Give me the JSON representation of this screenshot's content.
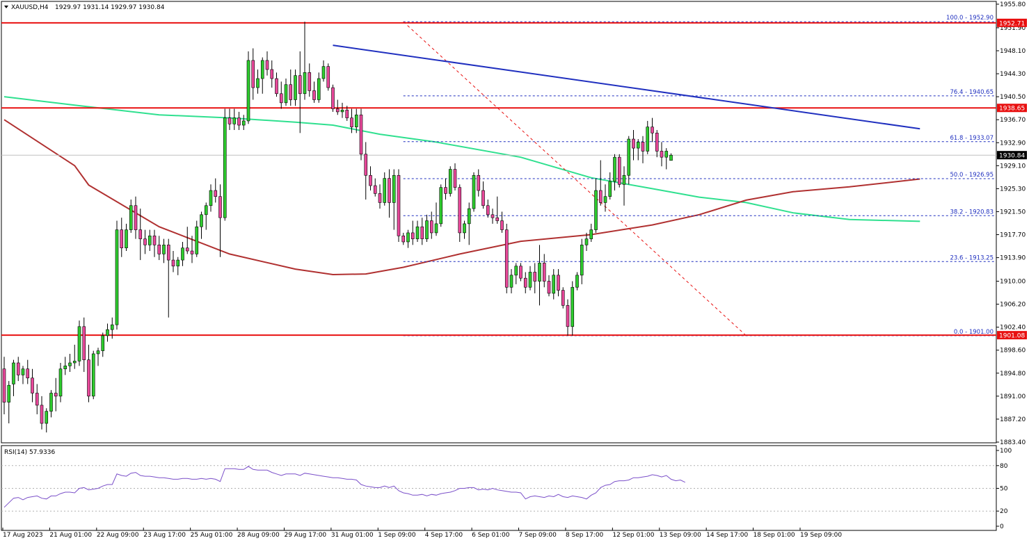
{
  "header": {
    "symbol": "XAUUSD,H4",
    "ohlc": "1929.97 1931.14 1929.97 1930.84"
  },
  "indicator": {
    "label": "RSI(14) 57.9336",
    "levels": [
      "100",
      "80",
      "50",
      "20",
      "0"
    ]
  },
  "colors": {
    "bull": "#2ecc2e",
    "bear": "#e8489a",
    "ma_red": "#b03030",
    "ma_green": "#2fe08f",
    "trendline": "#1f2fbf",
    "hline": "#e81010",
    "fib": "#1f2fbf",
    "rsi": "#7a4fc9",
    "current_price_bg": "#000000"
  },
  "chart_data": [
    {
      "type": "candlestick",
      "name": "price",
      "ylim": [
        1883.4,
        1955.8
      ],
      "y_ticks": [
        "1955.80",
        "1951.90",
        "1948.10",
        "1944.30",
        "1940.50",
        "1936.70",
        "1932.90",
        "1929.10",
        "1925.30",
        "1921.50",
        "1917.70",
        "1913.90",
        "1910.00",
        "1906.20",
        "1902.40",
        "1898.60",
        "1894.80",
        "1891.00",
        "1887.20",
        "1883.40"
      ],
      "x_ticks": [
        "17 Aug 2023",
        "21 Aug 01:00",
        "22 Aug 09:00",
        "23 Aug 17:00",
        "25 Aug 01:00",
        "28 Aug 09:00",
        "29 Aug 17:00",
        "31 Aug 01:00",
        "1 Sep 09:00",
        "4 Sep 17:00",
        "6 Sep 01:00",
        "7 Sep 09:00",
        "8 Sep 17:00",
        "12 Sep 01:00",
        "13 Sep 09:00",
        "14 Sep 17:00",
        "18 Sep 01:00",
        "19 Sep 09:00"
      ],
      "price_tags": [
        {
          "label": "1952.71",
          "value": 1952.71,
          "color": "#e81010"
        },
        {
          "label": "1938.65",
          "value": 1938.65,
          "color": "#e81010"
        },
        {
          "label": "1930.84",
          "value": 1930.84,
          "color": "#000000"
        },
        {
          "label": "1901.08",
          "value": 1901.08,
          "color": "#e81010"
        }
      ],
      "horizontal_lines": [
        1952.71,
        1938.65,
        1901.08
      ],
      "fibonacci": [
        {
          "label": "100.0 - 1952.90",
          "value": 1952.9
        },
        {
          "label": "76.4 - 1940.65",
          "value": 1940.65
        },
        {
          "label": "61.8 - 1933.07",
          "value": 1933.07
        },
        {
          "label": "50.0 - 1926.95",
          "value": 1926.95
        },
        {
          "label": "38.2 - 1920.83",
          "value": 1920.83
        },
        {
          "label": "23.6 - 1913.25",
          "value": 1913.25
        },
        {
          "label": "0.0 - 1901.00",
          "value": 1901.0
        }
      ],
      "fib_anchor_high": {
        "bar": 85,
        "value": 1952.9
      },
      "fib_anchor_low": {
        "bar": 158,
        "value": 1901.0
      },
      "trendline": [
        {
          "bar": 70,
          "value": 1949.0
        },
        {
          "bar": 195,
          "value": 1935.2
        }
      ],
      "ma_red": [
        [
          0,
          1936.7
        ],
        [
          15,
          1929.1
        ],
        [
          18,
          1925.9
        ],
        [
          33,
          1919.0
        ],
        [
          48,
          1914.5
        ],
        [
          62,
          1912.0
        ],
        [
          70,
          1911.1
        ],
        [
          77,
          1911.2
        ],
        [
          85,
          1912.3
        ],
        [
          97,
          1914.5
        ],
        [
          110,
          1916.6
        ],
        [
          125,
          1917.7
        ],
        [
          138,
          1919.3
        ],
        [
          148,
          1921.0
        ],
        [
          158,
          1923.4
        ],
        [
          168,
          1924.8
        ],
        [
          180,
          1925.6
        ],
        [
          195,
          1926.9
        ]
      ],
      "ma_green": [
        [
          0,
          1940.5
        ],
        [
          15,
          1939.1
        ],
        [
          33,
          1937.5
        ],
        [
          48,
          1937.0
        ],
        [
          62,
          1936.3
        ],
        [
          70,
          1935.8
        ],
        [
          80,
          1934.3
        ],
        [
          92,
          1933.0
        ],
        [
          110,
          1930.5
        ],
        [
          125,
          1927.1
        ],
        [
          138,
          1925.3
        ],
        [
          148,
          1923.9
        ],
        [
          158,
          1923.0
        ],
        [
          168,
          1921.3
        ],
        [
          180,
          1920.2
        ],
        [
          195,
          1919.9
        ]
      ],
      "candles": [
        [
          1895.5,
          1897.5,
          1888.0,
          1890.0
        ],
        [
          1890.0,
          1893.5,
          1886.5,
          1892.8
        ],
        [
          1893.0,
          1897.0,
          1891.0,
          1896.5
        ],
        [
          1896.5,
          1897.5,
          1893.5,
          1894.5
        ],
        [
          1894.5,
          1896.0,
          1893.0,
          1895.5
        ],
        [
          1895.5,
          1897.0,
          1893.0,
          1894.0
        ],
        [
          1894.0,
          1895.5,
          1890.0,
          1891.5
        ],
        [
          1891.5,
          1893.0,
          1888.0,
          1889.5
        ],
        [
          1889.5,
          1891.0,
          1885.5,
          1886.5
        ],
        [
          1886.5,
          1889.0,
          1885.0,
          1888.5
        ],
        [
          1888.5,
          1892.0,
          1887.5,
          1891.5
        ],
        [
          1891.5,
          1894.0,
          1888.5,
          1891.0
        ],
        [
          1891.0,
          1896.5,
          1890.0,
          1895.5
        ],
        [
          1895.5,
          1897.5,
          1894.5,
          1896.0
        ],
        [
          1896.0,
          1898.0,
          1895.0,
          1896.5
        ],
        [
          1896.5,
          1899.5,
          1895.5,
          1896.8
        ],
        [
          1896.8,
          1903.5,
          1896.0,
          1902.5
        ],
        [
          1902.5,
          1904.0,
          1895.0,
          1897.0
        ],
        [
          1897.0,
          1899.5,
          1890.0,
          1891.0
        ],
        [
          1891.0,
          1898.5,
          1890.5,
          1898.0
        ],
        [
          1898.0,
          1899.0,
          1896.0,
          1898.5
        ],
        [
          1898.5,
          1901.5,
          1897.5,
          1901.0
        ],
        [
          1901.0,
          1903.0,
          1900.0,
          1902.0
        ],
        [
          1902.0,
          1904.0,
          1900.5,
          1902.8
        ],
        [
          1902.8,
          1920.0,
          1902.0,
          1918.5
        ],
        [
          1918.5,
          1920.5,
          1914.0,
          1915.5
        ],
        [
          1915.5,
          1919.5,
          1915.0,
          1918.5
        ],
        [
          1918.5,
          1923.5,
          1918.0,
          1922.5
        ],
        [
          1922.5,
          1924.0,
          1917.0,
          1918.5
        ],
        [
          1918.5,
          1922.0,
          1913.5,
          1917.0
        ],
        [
          1917.0,
          1918.5,
          1914.5,
          1916.0
        ],
        [
          1916.0,
          1918.5,
          1915.0,
          1917.5
        ],
        [
          1917.5,
          1918.5,
          1914.0,
          1916.0
        ],
        [
          1916.0,
          1917.5,
          1913.5,
          1914.5
        ],
        [
          1914.5,
          1917.0,
          1913.0,
          1916.0
        ],
        [
          1916.0,
          1917.0,
          1904.0,
          1913.5
        ],
        [
          1913.5,
          1915.0,
          1911.5,
          1912.5
        ],
        [
          1912.5,
          1914.0,
          1911.0,
          1913.5
        ],
        [
          1913.5,
          1916.5,
          1912.5,
          1915.5
        ],
        [
          1915.5,
          1919.0,
          1914.5,
          1915.0
        ],
        [
          1915.0,
          1917.5,
          1913.0,
          1914.5
        ],
        [
          1914.5,
          1920.0,
          1914.0,
          1919.0
        ],
        [
          1919.0,
          1921.5,
          1917.0,
          1921.0
        ],
        [
          1921.0,
          1923.0,
          1918.5,
          1922.5
        ],
        [
          1922.5,
          1926.0,
          1921.5,
          1925.0
        ],
        [
          1925.0,
          1927.0,
          1923.0,
          1924.0
        ],
        [
          1924.0,
          1926.0,
          1914.0,
          1920.5
        ],
        [
          1920.5,
          1938.5,
          1920.0,
          1937.0
        ],
        [
          1937.0,
          1938.5,
          1935.0,
          1936.0
        ],
        [
          1936.0,
          1938.5,
          1935.0,
          1937.0
        ],
        [
          1937.0,
          1938.0,
          1935.0,
          1935.8
        ],
        [
          1935.8,
          1937.5,
          1935.0,
          1936.5
        ],
        [
          1936.5,
          1948.0,
          1936.0,
          1946.5
        ],
        [
          1946.5,
          1948.5,
          1940.0,
          1942.0
        ],
        [
          1942.0,
          1945.0,
          1941.0,
          1943.5
        ],
        [
          1943.5,
          1947.0,
          1941.0,
          1946.5
        ],
        [
          1946.5,
          1948.0,
          1944.0,
          1945.0
        ],
        [
          1945.0,
          1946.5,
          1942.0,
          1943.5
        ],
        [
          1943.5,
          1944.5,
          1940.5,
          1941.0
        ],
        [
          1941.0,
          1943.0,
          1938.5,
          1939.5
        ],
        [
          1939.5,
          1943.5,
          1939.0,
          1942.5
        ],
        [
          1942.5,
          1945.0,
          1939.0,
          1940.0
        ],
        [
          1940.0,
          1945.0,
          1939.0,
          1944.0
        ],
        [
          1944.0,
          1948.0,
          1934.5,
          1941.0
        ],
        [
          1941.0,
          1952.9,
          1940.0,
          1944.5
        ],
        [
          1944.5,
          1946.0,
          1940.5,
          1941.5
        ],
        [
          1941.5,
          1943.0,
          1939.5,
          1940.0
        ],
        [
          1940.0,
          1944.5,
          1939.5,
          1943.5
        ],
        [
          1943.5,
          1946.5,
          1943.0,
          1945.5
        ],
        [
          1945.5,
          1946.0,
          1941.5,
          1942.0
        ],
        [
          1942.0,
          1942.5,
          1938.0,
          1938.5
        ],
        [
          1938.5,
          1940.0,
          1937.5,
          1938.0
        ],
        [
          1938.0,
          1939.5,
          1937.0,
          1938.3
        ],
        [
          1938.3,
          1939.0,
          1936.5,
          1937.0
        ],
        [
          1937.0,
          1938.5,
          1934.5,
          1935.5
        ],
        [
          1935.5,
          1938.5,
          1934.5,
          1937.5
        ],
        [
          1937.5,
          1938.5,
          1930.0,
          1931.0
        ],
        [
          1931.0,
          1933.0,
          1923.5,
          1927.5
        ],
        [
          1927.5,
          1929.0,
          1925.0,
          1925.8
        ],
        [
          1925.8,
          1927.0,
          1924.0,
          1924.5
        ],
        [
          1924.5,
          1926.0,
          1922.0,
          1923.0
        ],
        [
          1923.0,
          1928.0,
          1922.5,
          1927.0
        ],
        [
          1927.0,
          1928.5,
          1920.5,
          1923.0
        ],
        [
          1923.0,
          1928.5,
          1918.5,
          1927.5
        ],
        [
          1927.5,
          1928.5,
          1916.5,
          1917.5
        ],
        [
          1917.5,
          1918.0,
          1916.0,
          1916.5
        ],
        [
          1916.5,
          1918.5,
          1915.5,
          1918.0
        ],
        [
          1918.0,
          1920.0,
          1916.0,
          1917.0
        ],
        [
          1917.0,
          1920.0,
          1916.5,
          1919.0
        ],
        [
          1919.0,
          1920.5,
          1916.0,
          1917.0
        ],
        [
          1917.0,
          1921.0,
          1916.5,
          1920.0
        ],
        [
          1920.0,
          1921.5,
          1917.0,
          1918.0
        ],
        [
          1918.0,
          1923.0,
          1917.5,
          1919.5
        ],
        [
          1919.5,
          1926.0,
          1919.0,
          1925.5
        ],
        [
          1925.5,
          1927.0,
          1923.5,
          1924.5
        ],
        [
          1924.5,
          1929.0,
          1924.0,
          1928.5
        ],
        [
          1928.5,
          1929.5,
          1925.0,
          1925.5
        ],
        [
          1925.5,
          1926.0,
          1916.5,
          1918.0
        ],
        [
          1918.0,
          1920.0,
          1917.0,
          1919.5
        ],
        [
          1919.5,
          1923.0,
          1916.0,
          1922.0
        ],
        [
          1922.0,
          1928.0,
          1921.5,
          1927.5
        ],
        [
          1927.5,
          1928.5,
          1924.0,
          1925.0
        ],
        [
          1925.0,
          1926.5,
          1922.0,
          1922.5
        ],
        [
          1922.5,
          1923.5,
          1920.5,
          1921.0
        ],
        [
          1921.0,
          1922.0,
          1919.5,
          1920.5
        ],
        [
          1920.5,
          1924.0,
          1919.5,
          1920.0
        ],
        [
          1920.0,
          1921.5,
          1918.0,
          1918.5
        ],
        [
          1918.5,
          1919.5,
          1908.0,
          1909.0
        ],
        [
          1909.0,
          1912.0,
          1908.0,
          1911.0
        ],
        [
          1911.0,
          1913.0,
          1909.5,
          1912.5
        ],
        [
          1912.5,
          1913.0,
          1910.0,
          1910.5
        ],
        [
          1910.5,
          1911.5,
          1908.0,
          1909.0
        ],
        [
          1909.0,
          1912.5,
          1908.5,
          1911.5
        ],
        [
          1911.5,
          1913.0,
          1908.0,
          1910.0
        ],
        [
          1910.0,
          1916.0,
          1906.0,
          1913.0
        ],
        [
          1913.0,
          1914.5,
          1909.0,
          1910.0
        ],
        [
          1910.0,
          1911.0,
          1907.5,
          1908.0
        ],
        [
          1908.0,
          1912.0,
          1907.0,
          1911.0
        ],
        [
          1911.0,
          1912.0,
          1907.5,
          1908.5
        ],
        [
          1908.5,
          1909.0,
          1905.5,
          1906.0
        ],
        [
          1906.0,
          1907.0,
          1901.0,
          1902.5
        ],
        [
          1902.5,
          1910.0,
          1901.0,
          1909.0
        ],
        [
          1909.0,
          1911.5,
          1908.5,
          1911.0
        ],
        [
          1911.0,
          1917.0,
          1909.5,
          1916.0
        ],
        [
          1916.0,
          1918.0,
          1915.0,
          1917.0
        ],
        [
          1917.0,
          1919.5,
          1916.5,
          1918.5
        ],
        [
          1918.5,
          1927.0,
          1918.0,
          1925.0
        ],
        [
          1925.0,
          1930.0,
          1922.5,
          1923.0
        ],
        [
          1923.0,
          1926.0,
          1921.5,
          1924.0
        ],
        [
          1924.0,
          1928.0,
          1923.5,
          1926.5
        ],
        [
          1926.5,
          1931.0,
          1925.0,
          1930.5
        ],
        [
          1930.5,
          1931.0,
          1925.5,
          1926.0
        ],
        [
          1926.0,
          1929.0,
          1922.5,
          1927.5
        ],
        [
          1927.5,
          1934.0,
          1926.0,
          1933.5
        ],
        [
          1933.5,
          1935.0,
          1930.0,
          1932.0
        ],
        [
          1932.0,
          1933.5,
          1930.0,
          1933.0
        ],
        [
          1933.0,
          1934.0,
          1929.5,
          1931.5
        ],
        [
          1931.5,
          1936.5,
          1931.0,
          1935.5
        ],
        [
          1935.5,
          1937.0,
          1933.0,
          1934.5
        ],
        [
          1934.5,
          1935.0,
          1930.5,
          1931.5
        ],
        [
          1931.5,
          1933.0,
          1929.0,
          1930.5
        ],
        [
          1930.5,
          1932.0,
          1928.5,
          1931.5
        ],
        [
          1929.97,
          1931.14,
          1929.97,
          1930.84
        ]
      ]
    },
    {
      "type": "line",
      "name": "RSI(14)",
      "ylim": [
        0,
        100
      ],
      "y_ticks": [
        "100",
        "80",
        "50",
        "20",
        "0"
      ],
      "values": [
        25,
        31,
        37,
        38,
        35,
        38,
        39,
        40,
        37,
        36,
        40,
        40,
        43,
        45,
        45,
        44,
        50,
        51,
        48,
        49,
        50,
        53,
        55,
        55,
        69,
        67,
        66,
        70,
        71,
        67,
        66,
        66,
        65,
        64,
        64,
        63,
        62,
        62,
        63,
        63,
        62,
        62,
        63,
        62,
        63,
        62,
        59,
        76,
        76,
        76,
        75,
        75,
        79,
        75,
        74,
        74,
        74,
        71,
        69,
        67,
        69,
        69,
        69,
        67,
        70,
        69,
        68,
        67,
        66,
        65,
        64,
        64,
        63,
        62,
        62,
        61,
        55,
        53,
        52,
        51,
        51,
        53,
        51,
        53,
        47,
        44,
        43,
        41,
        41,
        42,
        40,
        42,
        41,
        43,
        44,
        45,
        47,
        50,
        50,
        51,
        51,
        48,
        49,
        48,
        50,
        48,
        47,
        46,
        45,
        45,
        44,
        36,
        39,
        40,
        39,
        38,
        40,
        39,
        42,
        39,
        38,
        40,
        39,
        38,
        36,
        41,
        44,
        51,
        54,
        55,
        59,
        60,
        60,
        61,
        64,
        64,
        65,
        66,
        68,
        67,
        65,
        67,
        62,
        60,
        61,
        58
      ]
    }
  ]
}
